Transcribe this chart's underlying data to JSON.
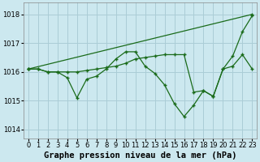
{
  "title": "Graphe pression niveau de la mer (hPa)",
  "background_color": "#cce8ef",
  "grid_color": "#aacdd6",
  "line_color": "#1a6b1a",
  "xlim": [
    -0.5,
    23.5
  ],
  "ylim": [
    1013.7,
    1018.4
  ],
  "yticks": [
    1014,
    1015,
    1016,
    1017,
    1018
  ],
  "xticks": [
    0,
    1,
    2,
    3,
    4,
    5,
    6,
    7,
    8,
    9,
    10,
    11,
    12,
    13,
    14,
    15,
    16,
    17,
    18,
    19,
    20,
    21,
    22,
    23
  ],
  "series": [
    {
      "x": [
        0,
        1,
        2,
        3,
        4,
        5,
        6,
        7,
        8,
        9,
        10,
        11,
        12,
        13,
        14,
        15,
        16,
        17,
        18,
        19,
        20,
        21,
        22,
        23
      ],
      "y": [
        1016.1,
        1016.1,
        1016.0,
        1016.0,
        1015.8,
        1015.1,
        1015.75,
        1015.85,
        1016.1,
        1016.45,
        1016.7,
        1016.7,
        1016.2,
        1015.95,
        1015.55,
        1014.9,
        1014.45,
        1014.85,
        1015.35,
        1015.15,
        1016.1,
        1016.55,
        1017.4,
        1017.95
      ]
    },
    {
      "x": [
        0,
        23
      ],
      "y": [
        1016.1,
        1018.0
      ]
    },
    {
      "x": [
        0,
        1,
        2,
        3,
        4,
        5,
        6,
        7,
        8,
        9,
        10,
        11,
        12,
        13,
        14,
        15,
        16,
        17,
        18,
        19,
        20,
        21,
        22,
        23
      ],
      "y": [
        1016.1,
        1016.1,
        1016.0,
        1016.0,
        1016.0,
        1016.0,
        1016.05,
        1016.1,
        1016.15,
        1016.2,
        1016.3,
        1016.45,
        1016.5,
        1016.55,
        1016.6,
        1016.6,
        1016.6,
        1015.3,
        1015.35,
        1015.15,
        1016.1,
        1016.2,
        1016.6,
        1016.1
      ]
    }
  ],
  "xlabel_fontsize": 7.5,
  "tick_fontsize": 6.0,
  "linewidth": 0.9,
  "markersize": 3.5,
  "markeredgewidth": 1.0
}
